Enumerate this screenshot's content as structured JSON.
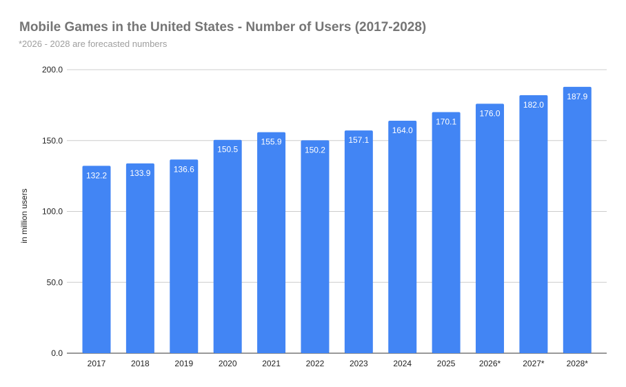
{
  "chart_data": {
    "type": "bar",
    "title": "Mobile Games in the United States - Number of Users (2017-2028)",
    "subtitle": "*2026 - 2028 are forecasted numbers",
    "xlabel": "",
    "ylabel": "in million users",
    "categories": [
      "2017",
      "2018",
      "2019",
      "2020",
      "2021",
      "2022",
      "2023",
      "2024",
      "2025",
      "2026*",
      "2027*",
      "2028*"
    ],
    "values": [
      132.2,
      133.9,
      136.6,
      150.5,
      155.9,
      150.2,
      157.1,
      164.0,
      170.1,
      176.0,
      182.0,
      187.9
    ],
    "data_labels": [
      "132.2",
      "133.9",
      "136.6",
      "150.5",
      "155.9",
      "150.2",
      "157.1",
      "164.0",
      "170.1",
      "176.0",
      "182.0",
      "187.9"
    ],
    "ylim": [
      0,
      200
    ],
    "yticks": [
      "0.0",
      "50.0",
      "100.0",
      "150.0",
      "200.0"
    ],
    "grid": true,
    "legend": "none",
    "bar_color": "#4285f4"
  }
}
